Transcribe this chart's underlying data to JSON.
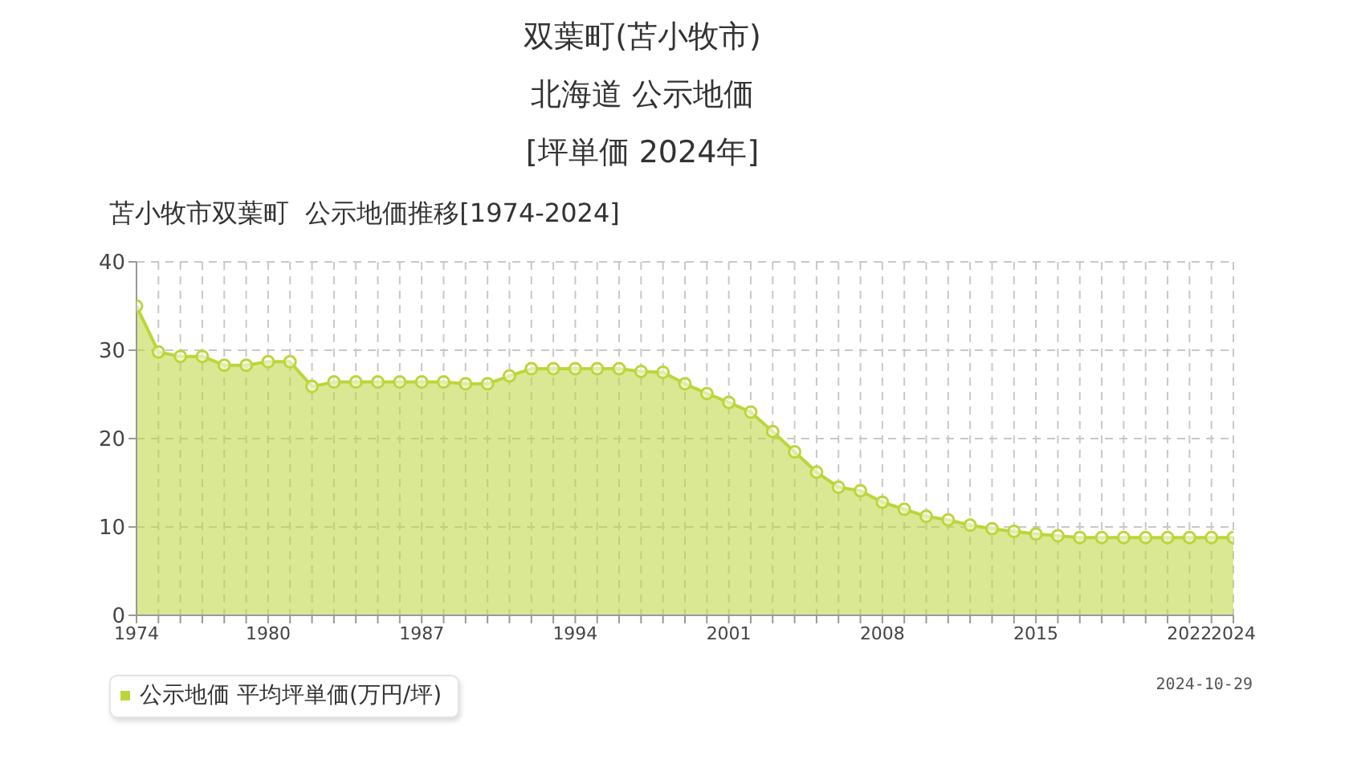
{
  "chart_data": {
    "type": "area",
    "title": "双葉町(苫小牧市)\n北海道 公示地価\n[坪単価 2024年]",
    "subtitle": "苫小牧市双葉町  公示地価推移[1974-2024]",
    "annotations": [
      "2024-10-29"
    ],
    "x": [
      1974,
      1975,
      1976,
      1977,
      1978,
      1979,
      1980,
      1981,
      1982,
      1983,
      1984,
      1985,
      1986,
      1987,
      1988,
      1989,
      1990,
      1991,
      1992,
      1993,
      1994,
      1995,
      1996,
      1997,
      1998,
      1999,
      2000,
      2001,
      2002,
      2003,
      2004,
      2005,
      2006,
      2007,
      2008,
      2009,
      2010,
      2011,
      2012,
      2013,
      2014,
      2015,
      2016,
      2017,
      2018,
      2019,
      2020,
      2021,
      2022,
      2023,
      2024
    ],
    "series": [
      {
        "name": "公示地価 平均坪単価(万円/坪)",
        "color": "#bcd63a",
        "values": [
          35.0,
          29.8,
          29.3,
          29.3,
          28.3,
          28.3,
          28.7,
          28.7,
          25.9,
          26.4,
          26.4,
          26.4,
          26.4,
          26.4,
          26.4,
          26.2,
          26.2,
          27.1,
          27.9,
          27.9,
          27.9,
          27.9,
          27.9,
          27.6,
          27.5,
          26.2,
          25.1,
          24.1,
          23.0,
          20.8,
          18.5,
          16.2,
          14.5,
          14.1,
          12.8,
          12.0,
          11.2,
          10.8,
          10.2,
          9.8,
          9.5,
          9.2,
          9.0,
          8.8,
          8.8,
          8.8,
          8.8,
          8.8,
          8.8,
          8.8,
          8.8
        ]
      }
    ],
    "xlim": [
      1974,
      2024
    ],
    "xticks": [
      1974,
      {
        "value": 1975,
        "label": null
      },
      {
        "value": 1976,
        "label": null
      },
      {
        "value": 1977,
        "label": null
      },
      {
        "value": 1978,
        "label": null
      },
      {
        "value": 1979,
        "label": null
      },
      1980,
      {
        "value": 1981,
        "label": null
      },
      {
        "value": 1982,
        "label": null
      },
      {
        "value": 1983,
        "label": null
      },
      {
        "value": 1984,
        "label": null
      },
      {
        "value": 1985,
        "label": null
      },
      {
        "value": 1986,
        "label": null
      },
      1987,
      {
        "value": 1988,
        "label": null
      },
      {
        "value": 1989,
        "label": null
      },
      {
        "value": 1990,
        "label": null
      },
      {
        "value": 1991,
        "label": null
      },
      {
        "value": 1992,
        "label": null
      },
      {
        "value": 1993,
        "label": null
      },
      1994,
      {
        "value": 1995,
        "label": null
      },
      {
        "value": 1996,
        "label": null
      },
      {
        "value": 1997,
        "label": null
      },
      {
        "value": 1998,
        "label": null
      },
      {
        "value": 1999,
        "label": null
      },
      {
        "value": 2000,
        "label": null
      },
      2001,
      {
        "value": 2002,
        "label": null
      },
      {
        "value": 2003,
        "label": null
      },
      {
        "value": 2004,
        "label": null
      },
      {
        "value": 2005,
        "label": null
      },
      {
        "value": 2006,
        "label": null
      },
      {
        "value": 2007,
        "label": null
      },
      2008,
      {
        "value": 2009,
        "label": null
      },
      {
        "value": 2010,
        "label": null
      },
      {
        "value": 2011,
        "label": null
      },
      {
        "value": 2012,
        "label": null
      },
      {
        "value": 2013,
        "label": null
      },
      {
        "value": 2014,
        "label": null
      },
      2015,
      {
        "value": 2016,
        "label": null
      },
      {
        "value": 2017,
        "label": null
      },
      {
        "value": 2018,
        "label": null
      },
      {
        "value": 2019,
        "label": null
      },
      {
        "value": 2020,
        "label": null
      },
      {
        "value": 2021,
        "label": null
      },
      2022,
      {
        "value": 2023,
        "label": null
      },
      2024
    ],
    "ylim": [
      0,
      40
    ],
    "yticks": [
      0,
      10,
      20,
      30,
      40
    ],
    "grid": true,
    "legend": "bottom left",
    "marker": "circle"
  }
}
